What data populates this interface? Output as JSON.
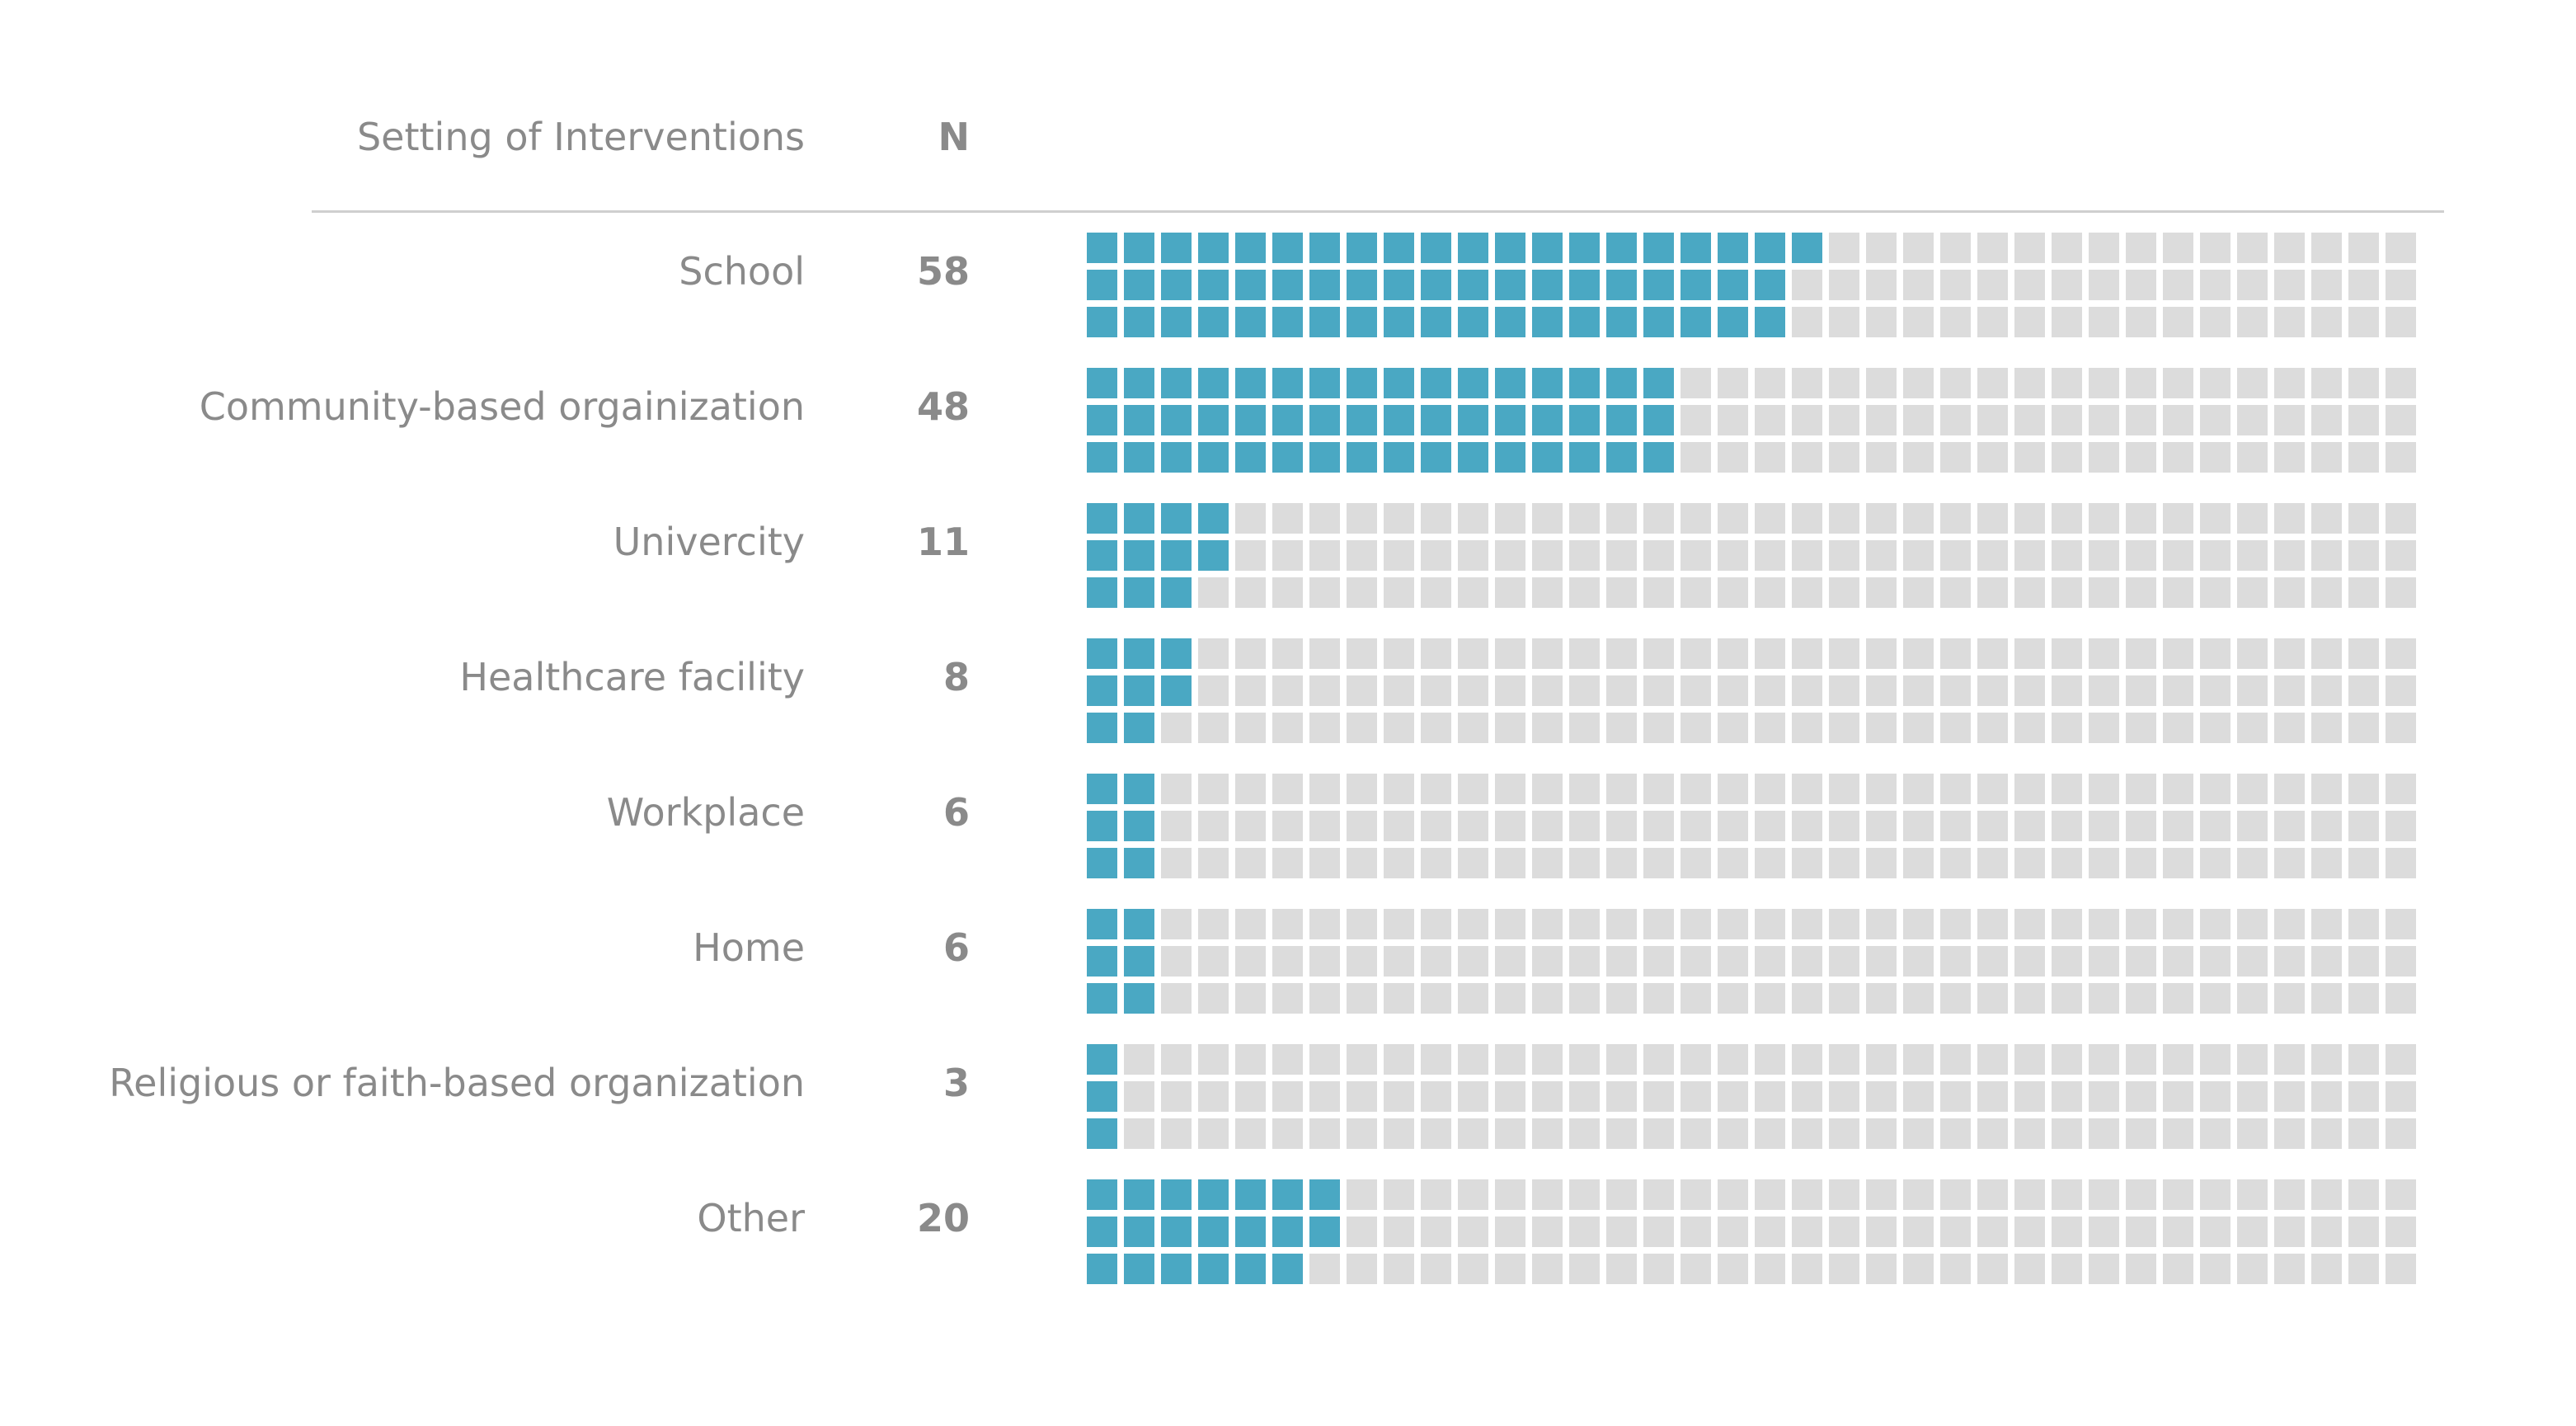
{
  "header": {
    "label": "Setting of Interventions",
    "n": "N"
  },
  "colors": {
    "filled": "#4aa8c3",
    "empty": "#dcdcdc",
    "text": "#8a8a8a",
    "divider": "#cfcfcf"
  },
  "chart_data": {
    "type": "waffle",
    "grid_rows": 3,
    "grid_cols": 36,
    "fill_order": "column-major, top-to-bottom",
    "categories": [
      "School",
      "Community-based orgainization",
      "Univercity",
      "Healthcare facility",
      "Workplace",
      "Home",
      "Religious or faith-based organization",
      "Other"
    ],
    "values": [
      58,
      48,
      11,
      8,
      6,
      6,
      3,
      20
    ],
    "value_labels": [
      "58",
      "48",
      "11",
      "8",
      "6",
      "6",
      "3",
      "20"
    ]
  }
}
